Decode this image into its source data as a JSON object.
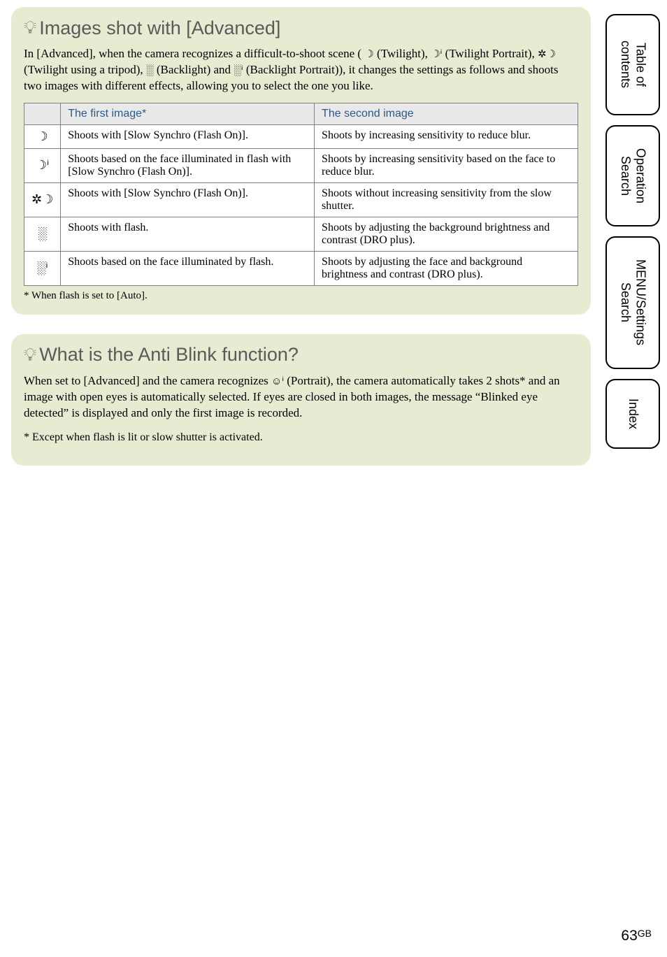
{
  "panel1": {
    "title": "Images shot with [Advanced]",
    "body_html": "In [Advanced], when the camera recognizes a difficult-to-shoot scene ( <span class='inline-icon'>☽</span> (Twilight), <span class='inline-icon'>☽ⁱ</span> (Twilight Portrait), <span class='inline-icon'>✲☽</span> (Twilight using a tripod), <span class='inline-icon'>░</span> (Backlight) and <span class='inline-icon'>░ⁱ</span> (Backlight Portrait)), it changes the settings as follows and shoots two images with different effects, allowing you to select the one you like.",
    "table": {
      "header": [
        "",
        "The first image*",
        "The second image"
      ],
      "rows": [
        {
          "icon": "☽",
          "first": "Shoots with [Slow Synchro (Flash On)].",
          "second": "Shoots by increasing sensitivity to reduce blur."
        },
        {
          "icon": "☽ⁱ",
          "first": "Shoots based on the face illuminated in flash with [Slow Synchro (Flash On)].",
          "second": "Shoots by increasing sensitivity based on the face to reduce blur."
        },
        {
          "icon": "✲☽",
          "first": "Shoots with [Slow Synchro (Flash On)].",
          "second": "Shoots without increasing sensitivity from the slow shutter."
        },
        {
          "icon": "░",
          "first": "Shoots with flash.",
          "second": "Shoots by adjusting the background brightness and contrast (DRO plus)."
        },
        {
          "icon": "░ⁱ",
          "first": "Shoots based on the face illuminated by flash.",
          "second": "Shoots by adjusting the face and background brightness and contrast (DRO plus)."
        }
      ]
    },
    "footnote": "* When flash is set to [Auto]."
  },
  "panel2": {
    "title": "What is the Anti Blink function?",
    "body_html": "When set to [Advanced] and the camera recognizes <span class='inline-icon'>☺ⁱ</span> (Portrait), the camera automatically takes 2 shots* and an image with open eyes is automatically selected. If eyes are closed in both images, the message “Blinked eye detected” is displayed and only the first image is recorded.",
    "footnote": "* Except when flash is lit or slow shutter is activated."
  },
  "tabs": [
    "Table of\ncontents",
    "Operation\nSearch",
    "MENU/Settings\nSearch",
    "Index"
  ],
  "page": {
    "num": "63",
    "suffix": "GB"
  },
  "colors": {
    "panel_bg": "#e6ebd2",
    "table_header_bg": "#e9e9e9",
    "table_header_color": "#2a5a8a",
    "border_color": "#808080"
  }
}
